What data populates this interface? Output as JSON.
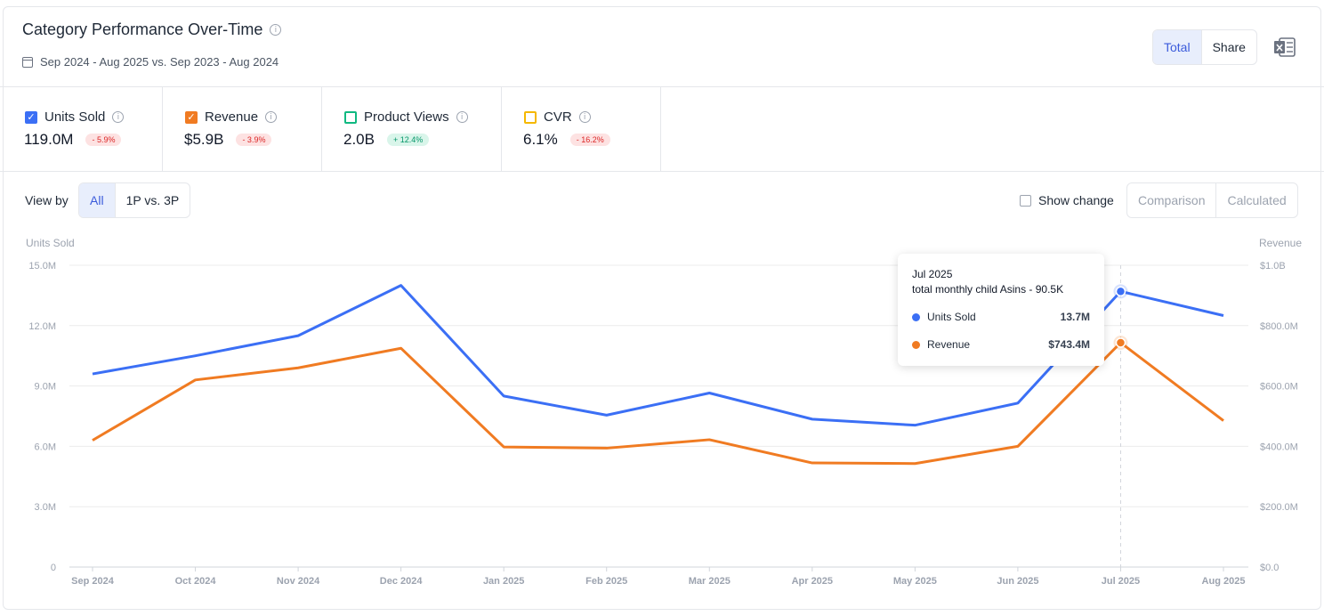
{
  "header": {
    "title": "Category Performance Over-Time",
    "date_range": "Sep 2024 - Aug 2025 vs. Sep 2023 - Aug 2024",
    "toggle": [
      "Total",
      "Share"
    ]
  },
  "metrics": [
    {
      "label": "Units Sold",
      "value": "119.0M",
      "change": "- 5.9%",
      "color": "#3b6ff5",
      "checked": true,
      "trend": "neg"
    },
    {
      "label": "Revenue",
      "value": "$5.9B",
      "change": "- 3.9%",
      "color": "#f07b22",
      "checked": true,
      "trend": "neg"
    },
    {
      "label": "Product Views",
      "value": "2.0B",
      "change": "+ 12.4%",
      "color": "#10b981",
      "checked": false,
      "trend": "pos"
    },
    {
      "label": "CVR",
      "value": "6.1%",
      "change": "- 16.2%",
      "color": "#f5b800",
      "checked": false,
      "trend": "neg"
    }
  ],
  "controls": {
    "view_by_label": "View by",
    "view_by_options": [
      "All",
      "1P vs. 3P"
    ],
    "show_change_label": "Show change",
    "mode_options": [
      "Comparison",
      "Calculated"
    ]
  },
  "tooltip": {
    "title": "Jul 2025",
    "subtitle": "total monthly child Asins - 90.5K",
    "rows": [
      {
        "label": "Units Sold",
        "value": "13.7M",
        "color": "#3b6ff5"
      },
      {
        "label": "Revenue",
        "value": "$743.4M",
        "color": "#f07b22"
      }
    ]
  },
  "chart_data": {
    "type": "line",
    "x": [
      "Sep 2024",
      "Oct 2024",
      "Nov 2024",
      "Dec 2024",
      "Jan 2025",
      "Feb 2025",
      "Mar 2025",
      "Apr 2025",
      "May 2025",
      "Jun 2025",
      "Jul 2025",
      "Aug 2025"
    ],
    "ylabel": "Units Sold",
    "y2label": "Revenue",
    "ylim": [
      0,
      15000000
    ],
    "y2lim": [
      0,
      1000000000
    ],
    "yticks": [
      "0",
      "3.0M",
      "6.0M",
      "9.0M",
      "12.0M",
      "15.0M"
    ],
    "y2ticks": [
      "$0.0",
      "$200.0M",
      "$400.0M",
      "$600.0M",
      "$800.0M",
      "$1.0B"
    ],
    "grid": true,
    "highlight_index": 10,
    "series": [
      {
        "name": "Units Sold",
        "axis": "left",
        "color": "#3b6ff5",
        "values": [
          9600000,
          10500000,
          11500000,
          14000000,
          8500000,
          7550000,
          8650000,
          7350000,
          7050000,
          8150000,
          13700000,
          12500000
        ]
      },
      {
        "name": "Revenue",
        "axis": "right",
        "color": "#f07b22",
        "values": [
          420000000,
          620000000,
          660000000,
          725000000,
          398000000,
          394000000,
          422000000,
          345000000,
          343000000,
          400000000,
          743400000,
          485000000
        ]
      }
    ]
  }
}
